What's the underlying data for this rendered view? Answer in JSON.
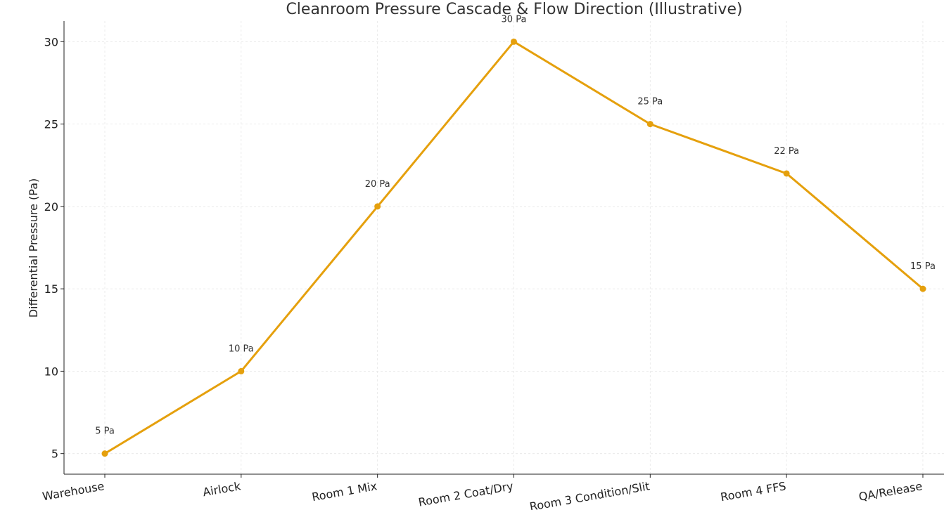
{
  "chart_data": {
    "type": "line",
    "title": "Cleanroom Pressure Cascade & Flow Direction (Illustrative)",
    "xlabel": "",
    "ylabel": "Differential Pressure (Pa)",
    "categories": [
      "Warehouse",
      "Airlock",
      "Room 1 Mix",
      "Room 2 Coat/Dry",
      "Room 3 Condition/Slit",
      "Room 4 FFS",
      "QA/Release"
    ],
    "series": [
      {
        "values": [
          5,
          10,
          20,
          30,
          25,
          22,
          15
        ],
        "color": "#E5A00D"
      }
    ],
    "data_labels": [
      "5 Pa",
      "10 Pa",
      "20 Pa",
      "30 Pa",
      "25 Pa",
      "22 Pa",
      "15 Pa"
    ],
    "yticks": [
      5,
      10,
      15,
      20,
      25,
      30
    ],
    "ylim": [
      3.75,
      31.25
    ],
    "grid": true,
    "legend": "none"
  }
}
